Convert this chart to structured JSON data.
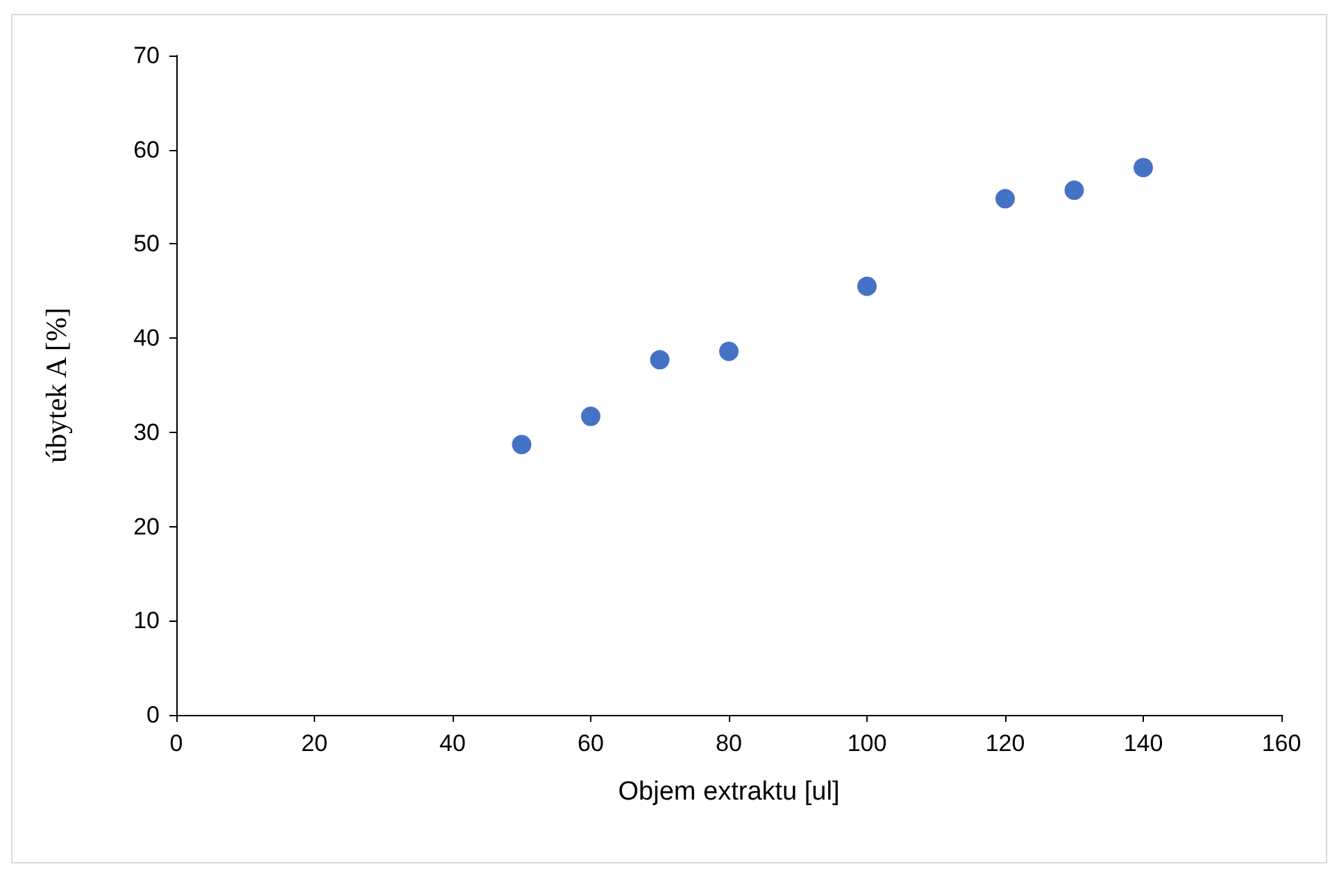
{
  "chart_data": {
    "type": "scatter",
    "xlabel": "Objem extraktu [ul]",
    "ylabel": "úbytek A [%]",
    "x": [
      50,
      60,
      70,
      80,
      100,
      120,
      130,
      140
    ],
    "series": [
      {
        "color": "#4472c4",
        "values": [
          28.7,
          31.7,
          37.7,
          38.6,
          45.5,
          54.8,
          55.7,
          58.1
        ]
      }
    ],
    "xlim": [
      0,
      160
    ],
    "xticks": [
      0,
      20,
      40,
      60,
      80,
      100,
      120,
      140,
      160
    ],
    "ylim": [
      0,
      70
    ],
    "yticks": [
      0,
      10,
      20,
      30,
      40,
      50,
      60,
      70
    ],
    "grid": false,
    "marker": "circle"
  }
}
